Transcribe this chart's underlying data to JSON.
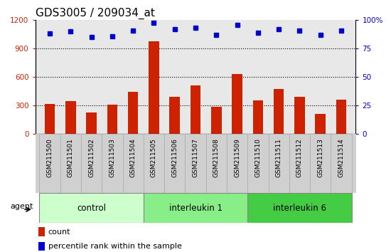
{
  "title": "GDS3005 / 209034_at",
  "categories": [
    "GSM211500",
    "GSM211501",
    "GSM211502",
    "GSM211503",
    "GSM211504",
    "GSM211505",
    "GSM211506",
    "GSM211507",
    "GSM211508",
    "GSM211509",
    "GSM211510",
    "GSM211511",
    "GSM211512",
    "GSM211513",
    "GSM211514"
  ],
  "bar_values": [
    310,
    345,
    220,
    305,
    440,
    980,
    390,
    510,
    285,
    630,
    350,
    470,
    390,
    205,
    360
  ],
  "dot_values": [
    88,
    90,
    85,
    86,
    91,
    98,
    92,
    93,
    87,
    96,
    89,
    92,
    91,
    87,
    91
  ],
  "bar_color": "#cc2200",
  "dot_color": "#0000cc",
  "ylim_left": [
    0,
    1200
  ],
  "ylim_right": [
    0,
    100
  ],
  "yticks_left": [
    0,
    300,
    600,
    900,
    1200
  ],
  "yticks_right": [
    0,
    25,
    50,
    75,
    100
  ],
  "ytick_labels_right": [
    "0",
    "25",
    "50",
    "75",
    "100%"
  ],
  "groups": [
    {
      "label": "control",
      "start": 0,
      "end": 4,
      "color": "#ccffcc"
    },
    {
      "label": "interleukin 1",
      "start": 5,
      "end": 9,
      "color": "#88ee88"
    },
    {
      "label": "interleukin 6",
      "start": 10,
      "end": 14,
      "color": "#44cc44"
    }
  ],
  "agent_label": "agent",
  "legend_count_label": "count",
  "legend_pct_label": "percentile rank within the sample",
  "title_fontsize": 11,
  "axis_label_color_left": "#cc2200",
  "axis_label_color_right": "#0000cc",
  "bar_width": 0.5,
  "plot_bg_color": "#e8e8e8",
  "xticklabel_bg": "#d0d0d0"
}
